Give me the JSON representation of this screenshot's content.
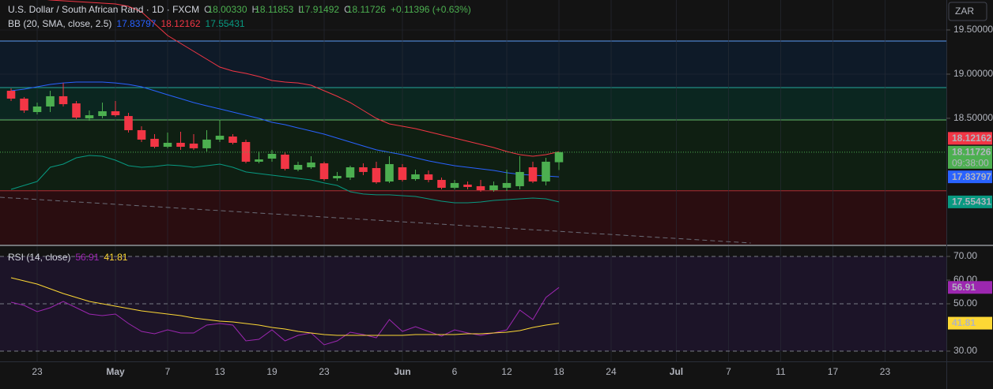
{
  "chart_data": [
    {
      "type": "candlestick",
      "title": "U.S. Dollar / South African Rand · 1D · FXCM",
      "ohlc_header": [
        {
          "key": "O",
          "text": "18.00330"
        },
        {
          "key": "H",
          "text": "18.11853"
        },
        {
          "key": "L",
          "text": "17.91492"
        },
        {
          "key": "C",
          "text": "18.11726"
        }
      ],
      "change": "+0.11396 (+0.63%)",
      "indicator": "BB (20, SMA, close, 2.5)",
      "currency": "ZAR",
      "countdown": "09:38:00",
      "xlim": [
        -0.85,
        71.7
      ],
      "xticks": [
        {
          "value": 2,
          "label": "23"
        },
        {
          "value": 8,
          "label": "May"
        },
        {
          "value": 12,
          "label": "7"
        },
        {
          "value": 16,
          "label": "13"
        },
        {
          "value": 20,
          "label": "19"
        },
        {
          "value": 24,
          "label": "23"
        },
        {
          "value": 30,
          "label": "Jun"
        },
        {
          "value": 34,
          "label": "6"
        },
        {
          "value": 38,
          "label": "12"
        },
        {
          "value": 42,
          "label": "18"
        },
        {
          "value": 46,
          "label": "24"
        },
        {
          "value": 51,
          "label": "Jul"
        },
        {
          "value": 55,
          "label": "7"
        },
        {
          "value": 59,
          "label": "11"
        },
        {
          "value": 63,
          "label": "17"
        },
        {
          "value": 67,
          "label": "23"
        }
      ],
      "ylim": [
        17.071,
        19.839
      ],
      "yticks": [
        {
          "value": 19.5,
          "label": "19.50000"
        },
        {
          "value": 19.0,
          "label": "19.00000"
        },
        {
          "value": 18.5,
          "label": "18.50000"
        }
      ],
      "up_color": "#4caf50",
      "down_color": "#f23645",
      "open": [
        18.812,
        18.723,
        18.571,
        18.634,
        18.75,
        18.669,
        18.5,
        18.526,
        18.58,
        18.526,
        18.366,
        18.268,
        18.178,
        18.223,
        18.214,
        18.161,
        18.259,
        18.294,
        18.232,
        18.009,
        18.044,
        18.089,
        17.919,
        17.946,
        17.991,
        17.821,
        17.83,
        17.946,
        17.937,
        17.785,
        17.946,
        17.812,
        17.866,
        17.803,
        17.714,
        17.75,
        17.732,
        17.687,
        17.714,
        17.732,
        17.946,
        17.785,
        18.0033
      ],
      "high": [
        18.839,
        18.741,
        18.678,
        18.812,
        18.901,
        18.696,
        18.589,
        18.678,
        18.696,
        18.562,
        18.41,
        18.321,
        18.339,
        18.348,
        18.321,
        18.366,
        18.482,
        18.321,
        18.259,
        18.125,
        18.143,
        18.116,
        18.009,
        18.071,
        18.009,
        17.893,
        17.964,
        17.991,
        18.009,
        18.071,
        17.982,
        17.919,
        17.91,
        17.83,
        17.803,
        17.785,
        17.803,
        17.785,
        17.919,
        18.071,
        18.009,
        18.053,
        18.11853
      ],
      "low": [
        18.696,
        18.562,
        18.544,
        18.571,
        18.634,
        18.491,
        18.473,
        18.5,
        18.518,
        18.339,
        18.232,
        18.161,
        18.161,
        18.143,
        18.143,
        18.125,
        18.232,
        18.205,
        17.991,
        17.991,
        18.009,
        17.91,
        17.901,
        17.928,
        17.794,
        17.794,
        17.803,
        17.857,
        17.759,
        17.768,
        17.785,
        17.794,
        17.776,
        17.696,
        17.696,
        17.696,
        17.669,
        17.669,
        17.678,
        17.696,
        17.768,
        17.741,
        17.91492
      ],
      "close": [
        18.723,
        18.589,
        18.634,
        18.75,
        18.66,
        18.509,
        18.535,
        18.58,
        18.535,
        18.366,
        18.259,
        18.178,
        18.223,
        18.178,
        18.161,
        18.259,
        18.303,
        18.223,
        18.009,
        18.035,
        18.098,
        17.928,
        17.973,
        18.0,
        17.812,
        17.848,
        17.946,
        17.893,
        17.776,
        17.982,
        17.803,
        17.866,
        17.803,
        17.714,
        17.768,
        17.723,
        17.687,
        17.741,
        17.768,
        17.893,
        17.785,
        18.009,
        18.11726
      ],
      "series": [
        {
          "name": "basis",
          "color": "#2962ff",
          "values": [
            18.812,
            18.83,
            18.857,
            18.884,
            18.901,
            18.91,
            18.91,
            18.91,
            18.901,
            18.884,
            18.857,
            18.812,
            18.767,
            18.723,
            18.678,
            18.642,
            18.607,
            18.571,
            18.535,
            18.5,
            18.455,
            18.428,
            18.392,
            18.357,
            18.321,
            18.276,
            18.232,
            18.187,
            18.143,
            18.116,
            18.089,
            18.053,
            18.018,
            17.991,
            17.964,
            17.946,
            17.928,
            17.91,
            17.884,
            17.866,
            17.857,
            17.848,
            17.83797
          ]
        },
        {
          "name": "upper",
          "color": "#f23645",
          "values": [
            19.91,
            19.884,
            19.857,
            19.839,
            19.83,
            19.821,
            19.812,
            19.803,
            19.794,
            19.768,
            19.705,
            19.571,
            19.437,
            19.348,
            19.259,
            19.169,
            19.08,
            19.035,
            19.009,
            18.973,
            18.928,
            18.91,
            18.901,
            18.875,
            18.812,
            18.75,
            18.678,
            18.589,
            18.5,
            18.437,
            18.41,
            18.384,
            18.348,
            18.312,
            18.276,
            18.241,
            18.205,
            18.169,
            18.125,
            18.089,
            18.071,
            18.089,
            18.12162
          ]
        },
        {
          "name": "lower",
          "color": "#089981",
          "values": [
            17.696,
            17.741,
            17.785,
            17.946,
            17.982,
            18.053,
            18.08,
            18.071,
            18.026,
            17.964,
            17.946,
            17.955,
            17.973,
            17.964,
            17.946,
            17.964,
            17.982,
            17.946,
            17.893,
            17.875,
            17.857,
            17.839,
            17.821,
            17.803,
            17.768,
            17.741,
            17.669,
            17.643,
            17.634,
            17.634,
            17.625,
            17.616,
            17.589,
            17.562,
            17.544,
            17.544,
            17.553,
            17.571,
            17.58,
            17.589,
            17.598,
            17.589,
            17.55431
          ]
        }
      ],
      "levels": [
        {
          "price": 19.375,
          "color": "#5b9cf6",
          "fill": "#0e1a28"
        },
        {
          "price": 18.848,
          "color": "#26a69a",
          "fill": "#0b2620"
        },
        {
          "price": 18.482,
          "color": "#66bb6a",
          "fill": "#0f1f12"
        },
        {
          "price": 17.68,
          "color": "#b22833",
          "fill": "#2a0d10"
        }
      ],
      "trendline": {
        "x": [
          -0.85,
          56.7
        ],
        "y": [
          17.607,
          17.089
        ],
        "color": "#6a6d78"
      }
    },
    {
      "type": "line",
      "indicator": "RSI (14, close)",
      "xlim": [
        -0.85,
        71.7
      ],
      "ylim": [
        25.67,
        73
      ],
      "yticks": [
        {
          "value": 70,
          "label": "70.00"
        },
        {
          "value": 60,
          "label": "60.00"
        },
        {
          "value": 50,
          "label": "50.00"
        },
        {
          "value": 30,
          "label": "30.00"
        }
      ],
      "dashed_levels": [
        70,
        50,
        30
      ],
      "band_fill": "#1c1428",
      "series": [
        {
          "name": "RSI",
          "color": "#9c27b0",
          "values": [
            50.67,
            49.33,
            46.67,
            48.33,
            51,
            48.33,
            45.67,
            45,
            45.67,
            41.67,
            38.33,
            37.33,
            39,
            37.67,
            37.67,
            41,
            41.67,
            41,
            34.33,
            35,
            39,
            34.33,
            36.67,
            37.67,
            32.67,
            34.33,
            38,
            37,
            35.67,
            43.33,
            38.33,
            40.33,
            38.33,
            36.33,
            39,
            37.67,
            36.67,
            37.67,
            39,
            47.33,
            43.33,
            52.67,
            56.91
          ]
        },
        {
          "name": "RSI-based MA",
          "color": "#fdd835",
          "values": [
            61,
            59.67,
            58.33,
            56.33,
            54.33,
            52.67,
            51,
            50,
            49,
            48,
            47,
            46.33,
            45.67,
            45,
            44,
            43.33,
            42.67,
            42.33,
            41.67,
            41,
            40,
            39.33,
            38.33,
            37.67,
            37,
            36.67,
            36.67,
            36.67,
            36.67,
            36.67,
            36.67,
            37,
            37,
            37,
            37,
            37.33,
            37.33,
            37.67,
            38,
            38.67,
            40,
            41,
            41.81
          ]
        }
      ]
    }
  ]
}
